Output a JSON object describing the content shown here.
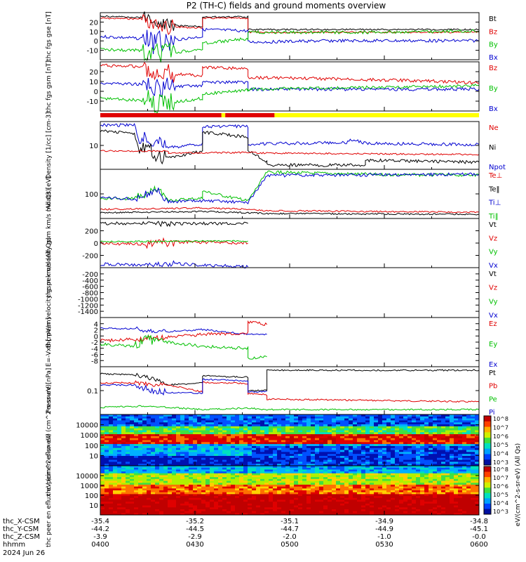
{
  "title": "P2 (TH-C) fields and ground moments overview",
  "colors": {
    "black": "#000000",
    "red": "#e00000",
    "green": "#00c000",
    "blue": "#0000d0",
    "yellow": "#ffff00"
  },
  "x_tick_times": [
    "0400",
    "0430",
    "0500",
    "0530",
    "0600"
  ],
  "orbit_labels": {
    "rows": [
      {
        "label": "thc_X-CSM",
        "values": [
          "-35.4",
          "-35.2",
          "-35.1",
          "-34.9",
          "-34.8"
        ]
      },
      {
        "label": "thc_Y-CSM",
        "values": [
          "-44.2",
          "-44.5",
          "-44.7",
          "-44.9",
          "-45.1"
        ]
      },
      {
        "label": "thc_Z-CSM",
        "values": [
          "-3.9",
          "-2.9",
          "-2.0",
          "-1.0",
          "-0.0"
        ]
      },
      {
        "label": "hhmm",
        "values": [
          "0400",
          "0430",
          "0500",
          "0530",
          "0600"
        ]
      }
    ],
    "date": "2024 Jun 26"
  },
  "colorbar": {
    "ticks_upper": [
      "10^8",
      "10^7",
      "10^6",
      "10^5",
      "10^4",
      "10^3"
    ],
    "ticks_lower": [
      "10^8",
      "10^7",
      "10^6",
      "10^5",
      "10^4",
      "10^3"
    ],
    "label": "eV/(cm^2-s-sr-eV) (All Qs)"
  },
  "chart_data": [
    {
      "id": "fgs",
      "type": "line",
      "ylabel": "thc fgs gse [nT]",
      "yticks": [
        "20",
        "10",
        "0",
        "-10"
      ],
      "ylim": [
        -15,
        25
      ],
      "legend": [
        "Bt",
        "Bz",
        "By",
        "Bx"
      ],
      "legend_colors": [
        "black",
        "red",
        "green",
        "blue"
      ]
    },
    {
      "id": "fgs_gsm",
      "type": "line",
      "ylabel": "thc fgs gsm [nT]",
      "yticks": [
        "20",
        "10",
        "0",
        "-10"
      ],
      "ylim": [
        -15,
        25
      ],
      "legend": [
        "Bz",
        "By",
        "Bx"
      ],
      "legend_colors": [
        "red",
        "green",
        "blue"
      ]
    },
    {
      "id": "density",
      "type": "line",
      "ylabel": "Density [1/cc] [cm-3]",
      "yticks": [
        "10"
      ],
      "log": true,
      "legend": [
        "Ne",
        "Ni",
        "Npot"
      ],
      "legend_colors": [
        "red",
        "black",
        "blue"
      ]
    },
    {
      "id": "temp",
      "type": "line",
      "ylabel": "moat3 [eV]",
      "yticks": [
        "100"
      ],
      "log": true,
      "legend": [
        "Te⊥",
        "Te‖",
        "Ti⊥",
        "Ti‖"
      ],
      "legend_colors": [
        "red",
        "black",
        "blue",
        "green"
      ]
    },
    {
      "id": "peir_vel",
      "type": "line",
      "ylabel": "thc peir velocity gsm km/s (All Qs)",
      "yticks": [
        "200",
        "0",
        "-200"
      ],
      "ylim": [
        -300,
        300
      ],
      "legend": [
        "Vt",
        "Vz",
        "Vy",
        "Vx"
      ],
      "legend_colors": [
        "black",
        "red",
        "green",
        "blue"
      ]
    },
    {
      "id": "peer_vel",
      "type": "line",
      "ylabel": "thc peer velocity gsm km/s (All Qs)",
      "yticks": [
        "-200",
        "-400",
        "-600",
        "-800",
        "-1000",
        "-1200",
        "-1400"
      ],
      "ylim": [
        -1500,
        0
      ],
      "legend": [
        "Vt",
        "Vz",
        "Vy",
        "Vx"
      ],
      "legend_colors": [
        "black",
        "red",
        "green",
        "blue"
      ]
    },
    {
      "id": "efield",
      "type": "line",
      "ylabel": "E=-VxB [mV/m]",
      "yticks": [
        "4",
        "2",
        "0",
        "-2",
        "-4",
        "-6",
        "-8"
      ],
      "ylim": [
        -9,
        5
      ],
      "legend": [
        "Ez",
        "Ey",
        "Ex"
      ],
      "legend_colors": [
        "red",
        "green",
        "blue"
      ]
    },
    {
      "id": "pressure",
      "type": "line",
      "ylabel": "Pressure [nPa]",
      "yticks": [
        "0.1"
      ],
      "log": true,
      "legend": [
        "Pt",
        "Pb",
        "Pe",
        "Pi"
      ],
      "legend_colors": [
        "black",
        "red",
        "green",
        "blue"
      ]
    },
    {
      "id": "peir_spec",
      "type": "heatmap",
      "ylabel": "thc peir en eflux eV (cm^2-s-sr-eV)",
      "yticks": [
        "10000",
        "1000",
        "100",
        "10"
      ]
    },
    {
      "id": "peer_spec",
      "type": "heatmap",
      "ylabel": "thc peer en eflux eV (cm^2-s-sr-eV)",
      "yticks": [
        "10000",
        "1000",
        "100",
        "10"
      ]
    }
  ]
}
